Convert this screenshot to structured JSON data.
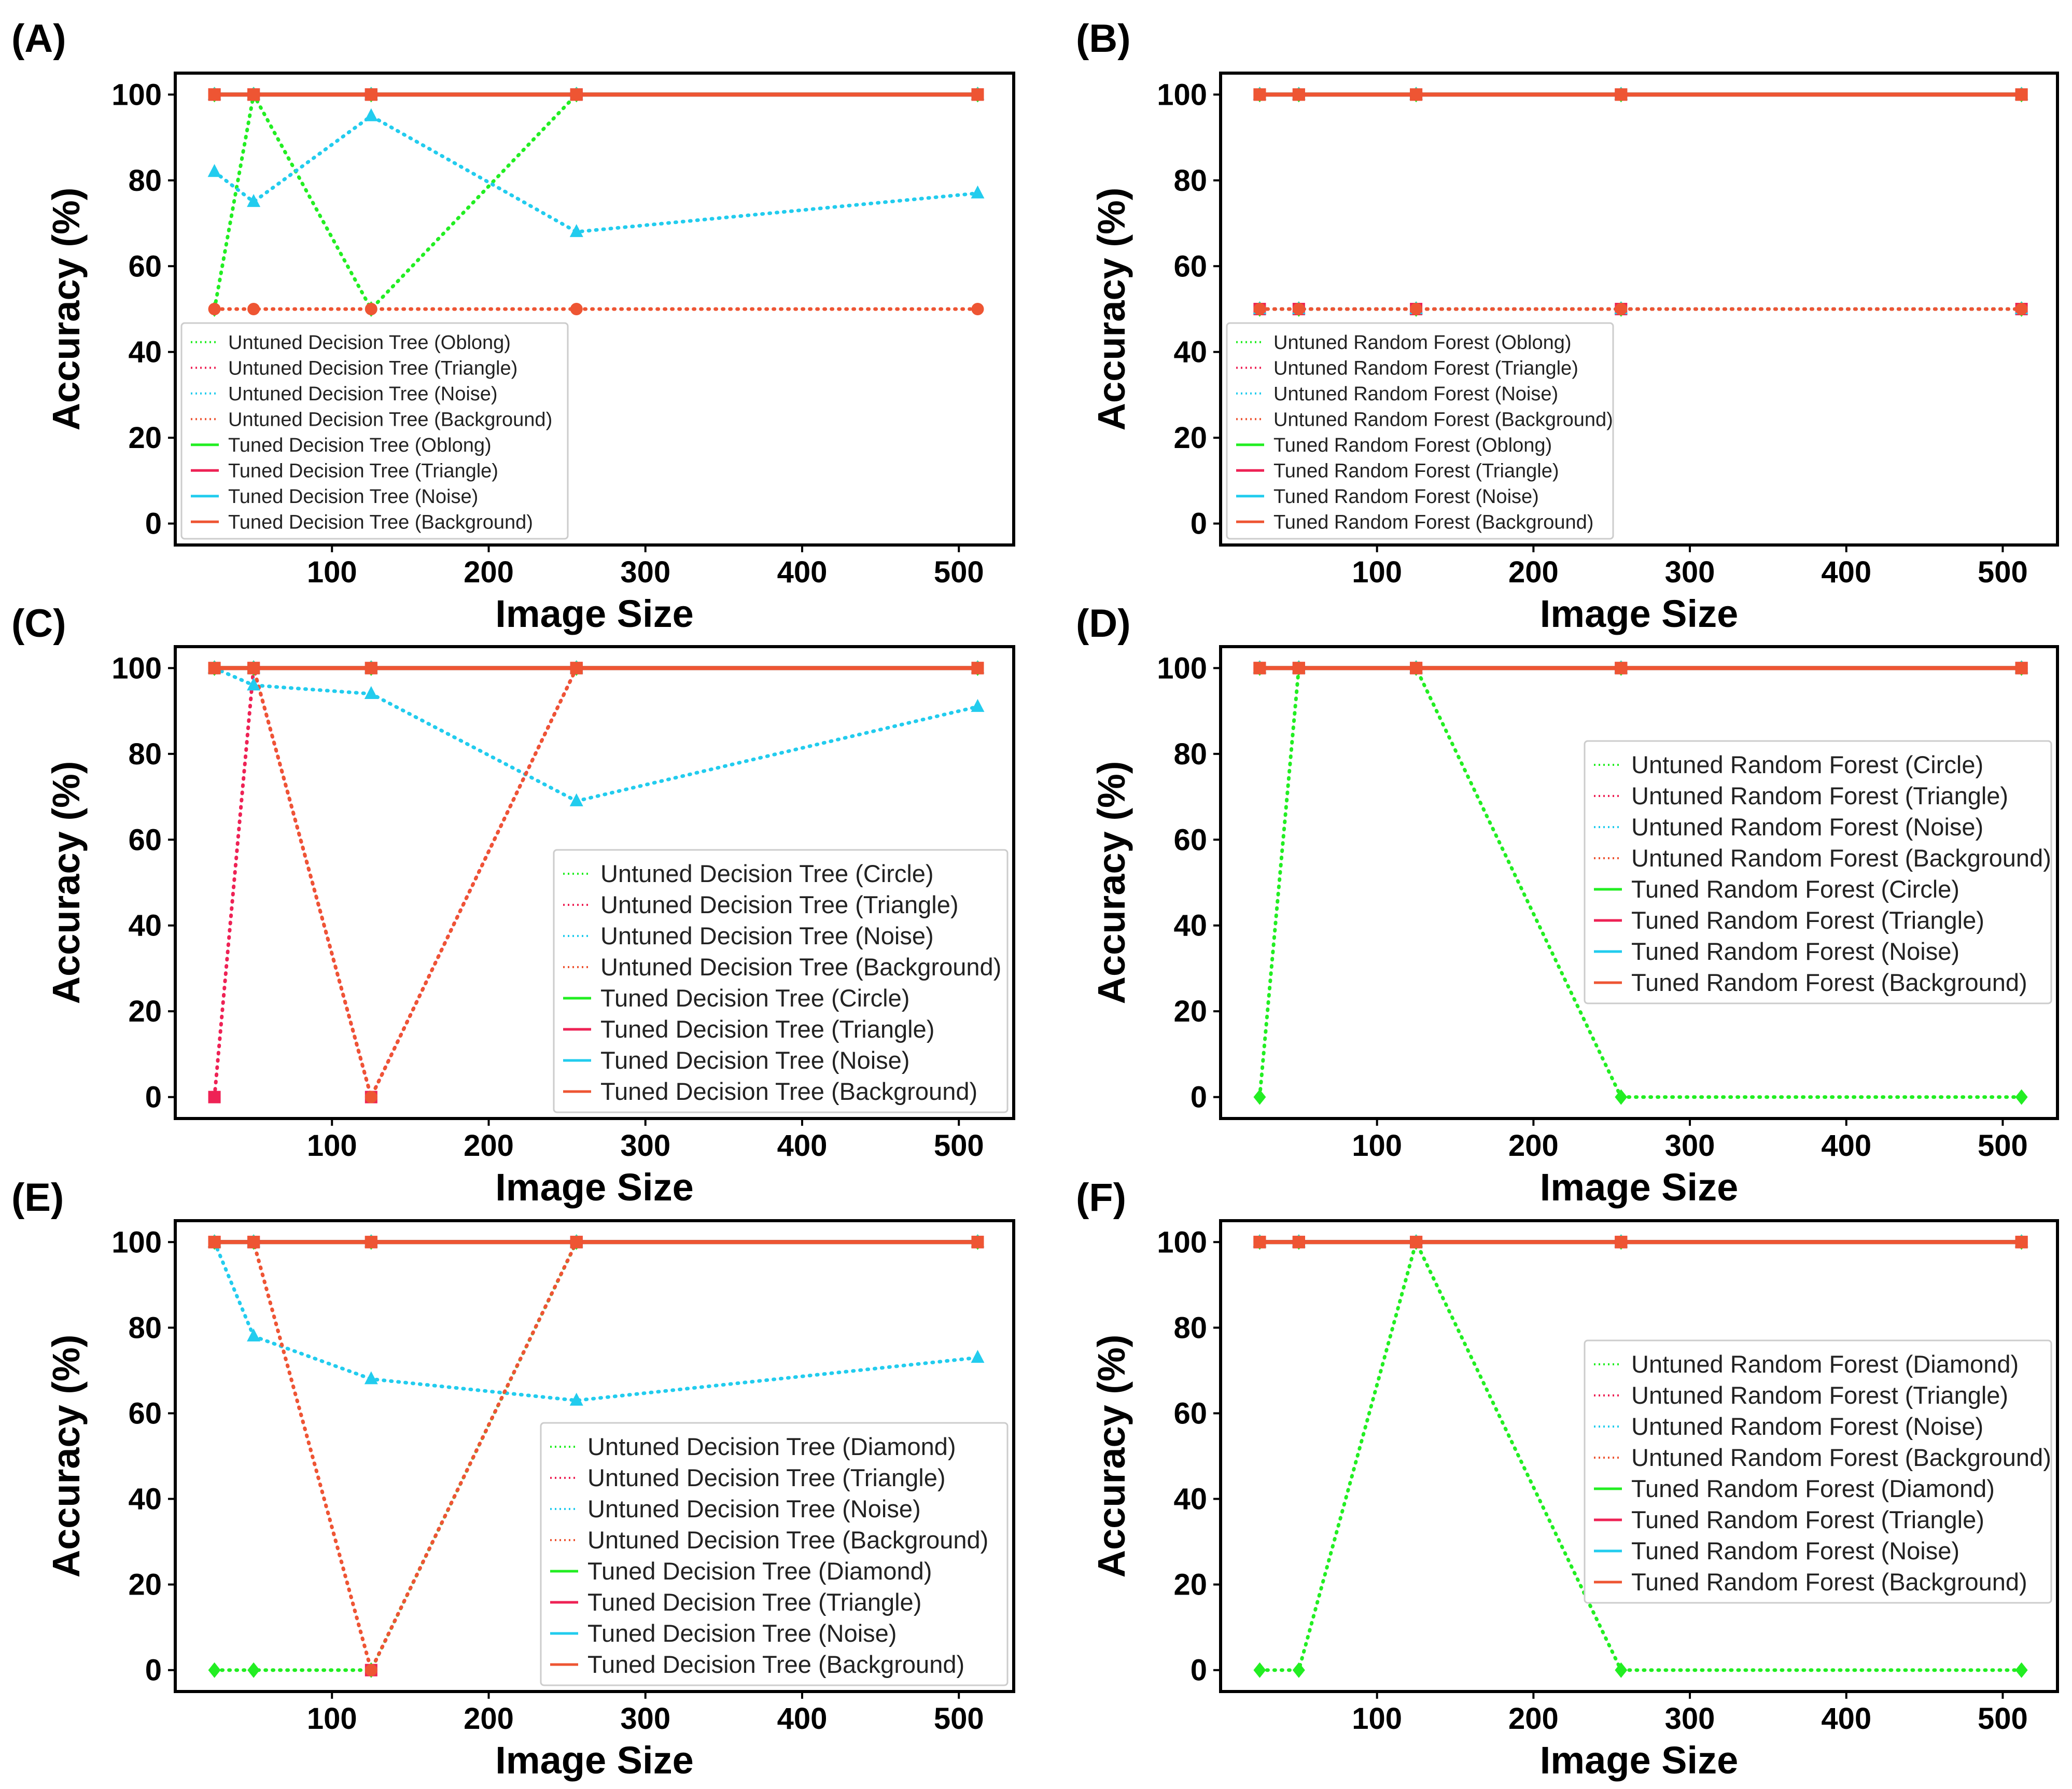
{
  "figure": {
    "colors": {
      "oblong_like": "#22ee22",
      "triangle": "#ee2255",
      "noise": "#22ccee",
      "background": "#ee5533"
    }
  },
  "chart_data": [
    {
      "panel": "(A)",
      "type": "line",
      "xlabel": "Image Size",
      "ylabel": "Accuracy (%)",
      "xlim": [
        0,
        535
      ],
      "ylim": [
        -5,
        105
      ],
      "xticks": [
        100,
        200,
        300,
        400,
        500
      ],
      "yticks": [
        0,
        20,
        40,
        60,
        80,
        100
      ],
      "x": [
        25,
        50,
        125,
        256,
        512
      ],
      "legend_loc": "lower-left",
      "legend_size": "small",
      "series": [
        {
          "name": "Untuned Decision Tree (Oblong)",
          "color": "#22ee22",
          "style": "dotted",
          "marker": "diamond",
          "values": [
            50,
            100,
            50,
            100,
            100
          ]
        },
        {
          "name": "Untuned Decision Tree (Triangle)",
          "color": "#ee2255",
          "style": "dotted",
          "marker": "square",
          "values": [
            100,
            100,
            100,
            100,
            100
          ]
        },
        {
          "name": "Untuned Decision Tree (Noise)",
          "color": "#22ccee",
          "style": "dotted",
          "marker": "triangle",
          "values": [
            82,
            75,
            95,
            68,
            77
          ]
        },
        {
          "name": "Untuned Decision Tree (Background)",
          "color": "#ee5533",
          "style": "dotted",
          "marker": "circle",
          "values": [
            50,
            50,
            50,
            50,
            50
          ]
        },
        {
          "name": "Tuned Decision Tree (Oblong)",
          "color": "#22ee22",
          "style": "solid",
          "marker": "diamond",
          "values": [
            100,
            100,
            100,
            100,
            100
          ]
        },
        {
          "name": "Tuned Decision Tree (Triangle)",
          "color": "#ee2255",
          "style": "solid",
          "marker": "square",
          "values": [
            100,
            100,
            100,
            100,
            100
          ]
        },
        {
          "name": "Tuned Decision Tree (Noise)",
          "color": "#22ccee",
          "style": "solid",
          "marker": "triangle",
          "values": [
            100,
            100,
            100,
            100,
            100
          ]
        },
        {
          "name": "Tuned Decision Tree (Background)",
          "color": "#ee5533",
          "style": "solid",
          "marker": "square",
          "values": [
            100,
            100,
            100,
            100,
            100
          ]
        }
      ]
    },
    {
      "panel": "(B)",
      "type": "line",
      "xlabel": "Image Size",
      "ylabel": "Accuracy (%)",
      "xlim": [
        0,
        535
      ],
      "ylim": [
        -5,
        105
      ],
      "xticks": [
        100,
        200,
        300,
        400,
        500
      ],
      "yticks": [
        0,
        20,
        40,
        60,
        80,
        100
      ],
      "x": [
        25,
        50,
        125,
        256,
        512
      ],
      "legend_loc": "lower-left",
      "legend_size": "small",
      "series": [
        {
          "name": "Untuned Random Forest (Oblong)",
          "color": "#22ee22",
          "style": "dotted",
          "marker": "diamond",
          "values": [
            50,
            50,
            50,
            50,
            50
          ]
        },
        {
          "name": "Untuned Random Forest (Triangle)",
          "color": "#ee2255",
          "style": "dotted",
          "marker": "square",
          "values": [
            50,
            50,
            50,
            50,
            50
          ]
        },
        {
          "name": "Untuned Random Forest (Noise)",
          "color": "#22ccee",
          "style": "dotted",
          "marker": "triangle",
          "values": [
            50,
            50,
            50,
            50,
            50
          ]
        },
        {
          "name": "Untuned Random Forest (Background)",
          "color": "#ee5533",
          "style": "dotted",
          "marker": "circle",
          "values": [
            50,
            50,
            50,
            50,
            50
          ]
        },
        {
          "name": "Tuned Random Forest (Oblong)",
          "color": "#22ee22",
          "style": "solid",
          "marker": "diamond",
          "values": [
            100,
            100,
            100,
            100,
            100
          ]
        },
        {
          "name": "Tuned Random Forest (Triangle)",
          "color": "#ee2255",
          "style": "solid",
          "marker": "square",
          "values": [
            100,
            100,
            100,
            100,
            100
          ]
        },
        {
          "name": "Tuned Random Forest (Noise)",
          "color": "#22ccee",
          "style": "solid",
          "marker": "triangle",
          "values": [
            100,
            100,
            100,
            100,
            100
          ]
        },
        {
          "name": "Tuned Random Forest (Background)",
          "color": "#ee5533",
          "style": "solid",
          "marker": "square",
          "values": [
            100,
            100,
            100,
            100,
            100
          ]
        }
      ]
    },
    {
      "panel": "(C)",
      "type": "line",
      "xlabel": "Image Size",
      "ylabel": "Accuracy (%)",
      "xlim": [
        0,
        535
      ],
      "ylim": [
        -5,
        105
      ],
      "xticks": [
        100,
        200,
        300,
        400,
        500
      ],
      "yticks": [
        0,
        20,
        40,
        60,
        80,
        100
      ],
      "x": [
        25,
        50,
        125,
        256,
        512
      ],
      "legend_loc": "lower-right",
      "legend_size": "large",
      "series": [
        {
          "name": "Untuned Decision Tree (Circle)",
          "color": "#22ee22",
          "style": "dotted",
          "marker": "diamond",
          "values": [
            100,
            100,
            100,
            100,
            100
          ]
        },
        {
          "name": "Untuned Decision Tree (Triangle)",
          "color": "#ee2255",
          "style": "dotted",
          "marker": "square",
          "values": [
            0,
            100,
            0,
            100,
            100
          ]
        },
        {
          "name": "Untuned Decision Tree (Noise)",
          "color": "#22ccee",
          "style": "dotted",
          "marker": "triangle",
          "values": [
            100,
            96,
            94,
            69,
            91
          ]
        },
        {
          "name": "Untuned Decision Tree (Background)",
          "color": "#ee5533",
          "style": "dotted",
          "marker": "circle",
          "values": [
            100,
            100,
            0,
            100,
            100
          ]
        },
        {
          "name": "Tuned Decision Tree (Circle)",
          "color": "#22ee22",
          "style": "solid",
          "marker": "diamond",
          "values": [
            100,
            100,
            100,
            100,
            100
          ]
        },
        {
          "name": "Tuned Decision Tree (Triangle)",
          "color": "#ee2255",
          "style": "solid",
          "marker": "square",
          "values": [
            100,
            100,
            100,
            100,
            100
          ]
        },
        {
          "name": "Tuned Decision Tree (Noise)",
          "color": "#22ccee",
          "style": "solid",
          "marker": "triangle",
          "values": [
            100,
            100,
            100,
            100,
            100
          ]
        },
        {
          "name": "Tuned Decision Tree (Background)",
          "color": "#ee5533",
          "style": "solid",
          "marker": "square",
          "values": [
            100,
            100,
            100,
            100,
            100
          ]
        }
      ]
    },
    {
      "panel": "(D)",
      "type": "line",
      "xlabel": "Image Size",
      "ylabel": "Accuracy (%)",
      "xlim": [
        0,
        535
      ],
      "ylim": [
        -5,
        105
      ],
      "xticks": [
        100,
        200,
        300,
        400,
        500
      ],
      "yticks": [
        0,
        20,
        40,
        60,
        80,
        100
      ],
      "x": [
        25,
        50,
        125,
        256,
        512
      ],
      "legend_loc": "center-right",
      "legend_size": "large",
      "series": [
        {
          "name": "Untuned Random Forest (Circle)",
          "color": "#22ee22",
          "style": "dotted",
          "marker": "diamond",
          "values": [
            0,
            100,
            100,
            0,
            0
          ]
        },
        {
          "name": "Untuned Random Forest (Triangle)",
          "color": "#ee2255",
          "style": "dotted",
          "marker": "square",
          "values": [
            100,
            100,
            100,
            100,
            100
          ]
        },
        {
          "name": "Untuned Random Forest (Noise)",
          "color": "#22ccee",
          "style": "dotted",
          "marker": "triangle",
          "values": [
            100,
            100,
            100,
            100,
            100
          ]
        },
        {
          "name": "Untuned Random Forest (Background)",
          "color": "#ee5533",
          "style": "dotted",
          "marker": "circle",
          "values": [
            100,
            100,
            100,
            100,
            100
          ]
        },
        {
          "name": "Tuned Random Forest (Circle)",
          "color": "#22ee22",
          "style": "solid",
          "marker": "diamond",
          "values": [
            100,
            100,
            100,
            100,
            100
          ]
        },
        {
          "name": "Tuned Random Forest (Triangle)",
          "color": "#ee2255",
          "style": "solid",
          "marker": "square",
          "values": [
            100,
            100,
            100,
            100,
            100
          ]
        },
        {
          "name": "Tuned Random Forest (Noise)",
          "color": "#22ccee",
          "style": "solid",
          "marker": "triangle",
          "values": [
            100,
            100,
            100,
            100,
            100
          ]
        },
        {
          "name": "Tuned Random Forest (Background)",
          "color": "#ee5533",
          "style": "solid",
          "marker": "square",
          "values": [
            100,
            100,
            100,
            100,
            100
          ]
        }
      ]
    },
    {
      "panel": "(E)",
      "type": "line",
      "xlabel": "Image Size",
      "ylabel": "Accuracy (%)",
      "xlim": [
        0,
        535
      ],
      "ylim": [
        -5,
        105
      ],
      "xticks": [
        100,
        200,
        300,
        400,
        500
      ],
      "yticks": [
        0,
        20,
        40,
        60,
        80,
        100
      ],
      "x": [
        25,
        50,
        125,
        256,
        512
      ],
      "legend_loc": "lower-right",
      "legend_size": "large",
      "series": [
        {
          "name": "Untuned Decision Tree (Diamond)",
          "color": "#22ee22",
          "style": "dotted",
          "marker": "diamond",
          "values": [
            0,
            0,
            0,
            100,
            100
          ]
        },
        {
          "name": "Untuned Decision Tree (Triangle)",
          "color": "#ee2255",
          "style": "dotted",
          "marker": "square",
          "values": [
            100,
            100,
            0,
            100,
            100
          ]
        },
        {
          "name": "Untuned Decision Tree (Noise)",
          "color": "#22ccee",
          "style": "dotted",
          "marker": "triangle",
          "values": [
            100,
            78,
            68,
            63,
            73
          ]
        },
        {
          "name": "Untuned Decision Tree (Background)",
          "color": "#ee5533",
          "style": "dotted",
          "marker": "circle",
          "values": [
            100,
            100,
            0,
            100,
            100
          ]
        },
        {
          "name": "Tuned Decision Tree (Diamond)",
          "color": "#22ee22",
          "style": "solid",
          "marker": "diamond",
          "values": [
            100,
            100,
            100,
            100,
            100
          ]
        },
        {
          "name": "Tuned Decision Tree (Triangle)",
          "color": "#ee2255",
          "style": "solid",
          "marker": "square",
          "values": [
            100,
            100,
            100,
            100,
            100
          ]
        },
        {
          "name": "Tuned Decision Tree (Noise)",
          "color": "#22ccee",
          "style": "solid",
          "marker": "triangle",
          "values": [
            100,
            100,
            100,
            100,
            100
          ]
        },
        {
          "name": "Tuned Decision Tree (Background)",
          "color": "#ee5533",
          "style": "solid",
          "marker": "square",
          "values": [
            100,
            100,
            100,
            100,
            100
          ]
        }
      ]
    },
    {
      "panel": "(F)",
      "type": "line",
      "xlabel": "Image Size",
      "ylabel": "Accuracy (%)",
      "xlim": [
        0,
        535
      ],
      "ylim": [
        -5,
        105
      ],
      "xticks": [
        100,
        200,
        300,
        400,
        500
      ],
      "yticks": [
        0,
        20,
        40,
        60,
        80,
        100
      ],
      "x": [
        25,
        50,
        125,
        256,
        512
      ],
      "legend_loc": "center-right",
      "legend_size": "large",
      "series": [
        {
          "name": "Untuned Random Forest (Diamond)",
          "color": "#22ee22",
          "style": "dotted",
          "marker": "diamond",
          "values": [
            0,
            0,
            100,
            0,
            0
          ]
        },
        {
          "name": "Untuned Random Forest (Triangle)",
          "color": "#ee2255",
          "style": "dotted",
          "marker": "square",
          "values": [
            100,
            100,
            100,
            100,
            100
          ]
        },
        {
          "name": "Untuned Random Forest (Noise)",
          "color": "#22ccee",
          "style": "dotted",
          "marker": "triangle",
          "values": [
            100,
            100,
            100,
            100,
            100
          ]
        },
        {
          "name": "Untuned Random Forest (Background)",
          "color": "#ee5533",
          "style": "dotted",
          "marker": "circle",
          "values": [
            100,
            100,
            100,
            100,
            100
          ]
        },
        {
          "name": "Tuned Random Forest (Diamond)",
          "color": "#22ee22",
          "style": "solid",
          "marker": "diamond",
          "values": [
            100,
            100,
            100,
            100,
            100
          ]
        },
        {
          "name": "Tuned Random Forest (Triangle)",
          "color": "#ee2255",
          "style": "solid",
          "marker": "square",
          "values": [
            100,
            100,
            100,
            100,
            100
          ]
        },
        {
          "name": "Tuned Random Forest (Noise)",
          "color": "#22ccee",
          "style": "solid",
          "marker": "triangle",
          "values": [
            100,
            100,
            100,
            100,
            100
          ]
        },
        {
          "name": "Tuned Random Forest (Background)",
          "color": "#ee5533",
          "style": "solid",
          "marker": "square",
          "values": [
            100,
            100,
            100,
            100,
            100
          ]
        }
      ]
    }
  ]
}
